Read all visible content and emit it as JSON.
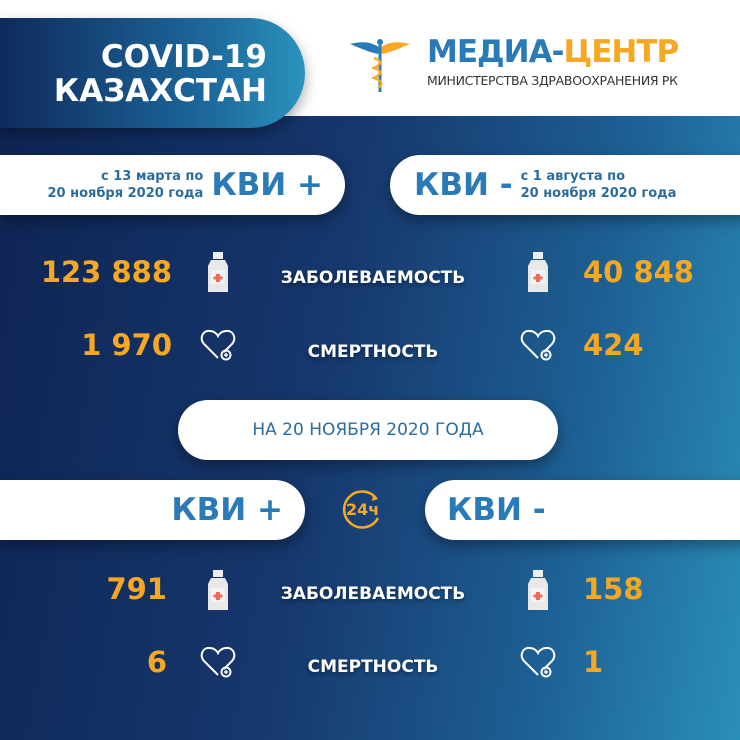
{
  "header": {
    "title_line1": "COVID-19",
    "title_line2": "КАЗАХСТАН",
    "brand_part1": "МЕДИА-",
    "brand_part2": "ЦЕНТР",
    "brand_sub": "МИНИСТЕРСТВА ЗДРАВООХРАНЕНИЯ РК"
  },
  "cumulative": {
    "left": {
      "period_line1": "с 13 марта по",
      "period_line2": "20 ноября 2020 года",
      "label": "КВИ +",
      "cases": "123 888",
      "deaths": "1 970"
    },
    "right": {
      "period_line1": "с 1 августа  по",
      "period_line2": "20 ноября 2020 года",
      "label": "КВИ -",
      "cases": "40 848",
      "deaths": "424"
    }
  },
  "labels": {
    "cases": "ЗАБОЛЕВАЕМОСТЬ",
    "deaths": "СМЕРТНОСТЬ"
  },
  "daily": {
    "date": "НА 20 НОЯБРЯ  2020 ГОДА",
    "badge": "24ч",
    "left": {
      "label": "КВИ +",
      "cases": "791",
      "deaths": "6"
    },
    "right": {
      "label": "КВИ -",
      "cases": "158",
      "deaths": "1"
    }
  },
  "colors": {
    "accent": "#f7a823",
    "blue": "#2b7ab8"
  },
  "icons": [
    "caduceus-icon",
    "medicine-bottle-icon",
    "heart-plus-icon",
    "clock-24-icon"
  ]
}
